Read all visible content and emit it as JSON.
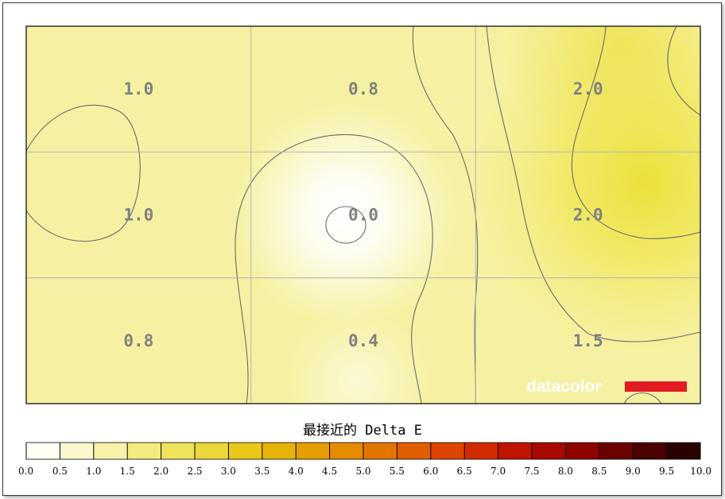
{
  "chart_data": {
    "type": "heatmap",
    "rows": 3,
    "cols": 3,
    "values": [
      [
        1.0,
        0.8,
        2.0
      ],
      [
        1.0,
        0.0,
        2.0
      ],
      [
        0.8,
        0.4,
        1.5
      ]
    ],
    "value_labels": [
      [
        "1.0",
        "0.8",
        "2.0"
      ],
      [
        "1.0",
        "0.0",
        "2.0"
      ],
      [
        "0.8",
        "0.4",
        "1.5"
      ]
    ],
    "scale_title": "最接近的 Delta E",
    "scale_range": [
      0,
      10
    ],
    "scale_step": 0.5,
    "scale_ticks": [
      "0.0",
      "0.5",
      "1.0",
      "1.5",
      "2.0",
      "2.5",
      "3.0",
      "3.5",
      "4.0",
      "4.5",
      "5.0",
      "5.5",
      "6.0",
      "6.5",
      "7.0",
      "7.5",
      "8.0",
      "8.5",
      "9.0",
      "9.5",
      "10.0"
    ],
    "contours": true,
    "grid": true,
    "colors": {
      "plot_background": "#f7f3a6",
      "label_color": "#808080",
      "brand_bar": "#e31b23"
    },
    "scale_colors": [
      "#fffff5",
      "#fbf8d0",
      "#f7f2a8",
      "#f3eb80",
      "#efe35c",
      "#ecd73a",
      "#eac719",
      "#e7b308",
      "#e59f00",
      "#e48b00",
      "#e27500",
      "#e05e00",
      "#dd4500",
      "#d22a00",
      "#bf1500",
      "#a80800",
      "#8c0300",
      "#6b0200",
      "#4b0100",
      "#2a0000"
    ]
  },
  "watermark": {
    "brand": "datacolor"
  }
}
